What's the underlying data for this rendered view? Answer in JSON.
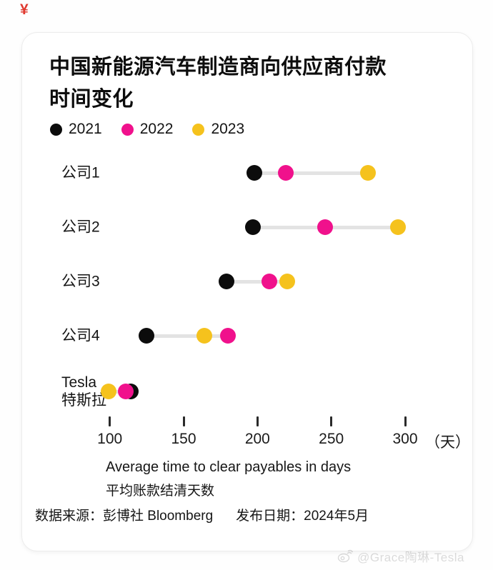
{
  "corner_mark": "¥",
  "card": {
    "title_line1": "中国新能源汽车制造商向供应商付款",
    "title_line2": "时间变化"
  },
  "legend": [
    {
      "label": "2021",
      "color": "#0c0c0c"
    },
    {
      "label": "2022",
      "color": "#f0118c"
    },
    {
      "label": "2023",
      "color": "#f5c21d"
    }
  ],
  "chart_data": {
    "type": "scatter",
    "subtype": "dumbbell-dot-plot",
    "title": "中国新能源汽车制造商向供应商付款时间变化",
    "categories": [
      "公司1",
      "公司2",
      "公司3",
      "公司4",
      "Tesla 特斯拉"
    ],
    "category_lines": [
      [
        "公司1"
      ],
      [
        "公司2"
      ],
      [
        "公司3"
      ],
      [
        "公司4"
      ],
      [
        "Tesla",
        "特斯拉"
      ]
    ],
    "series": [
      {
        "name": "2021",
        "color": "#0c0c0c",
        "values": [
          198,
          197,
          179,
          125,
          114
        ]
      },
      {
        "name": "2022",
        "color": "#f0118c",
        "values": [
          219,
          246,
          208,
          180,
          111
        ]
      },
      {
        "name": "2023",
        "color": "#f5c21d",
        "values": [
          275,
          295,
          220,
          164,
          99
        ]
      }
    ],
    "x_ticks": [
      100,
      150,
      200,
      250,
      300
    ],
    "x_unit": "（天）",
    "xlim": [
      100,
      300
    ],
    "grid": false,
    "legend_position": "top-left",
    "xlabel_en": "Average time to clear payables in days",
    "xlabel_zh": "平均账款结清天数",
    "connector_color": "#e3e3e3"
  },
  "footer": {
    "source": "数据来源：彭博社 Bloomberg",
    "published": "发布日期：2024年5月"
  },
  "watermark": {
    "text": "@Grace陶琳-Tesla"
  }
}
